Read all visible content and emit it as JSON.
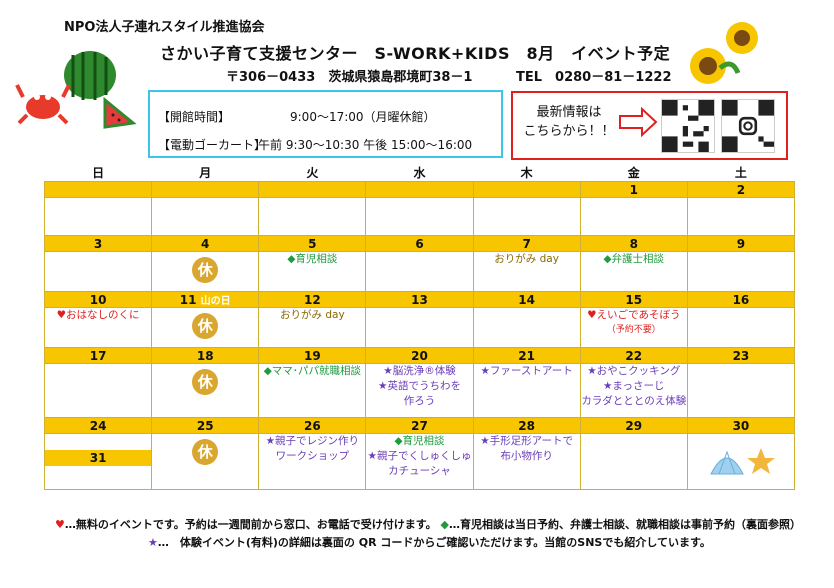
{
  "header": {
    "org": "NPO法人子連れスタイル推進協会",
    "title": "さかい子育て支援センター　S-WORK+KIDS　8月　イベント予定",
    "address": "〒306－0433　茨城県猿島郡境町38－1",
    "tel": "TEL　0280－81－1222"
  },
  "hours": {
    "open_label": "【開館時間】",
    "open_value": "9:00～17:00（月曜休館）",
    "cart_label": "【電動ゴーカート】",
    "cart_value": "午前 9:30～10:30  午後 15:00～16:00"
  },
  "qr": {
    "text1": "最新情報は",
    "text2": "こちらから！！"
  },
  "calendar": {
    "days": [
      "日",
      "月",
      "火",
      "水",
      "木",
      "金",
      "土"
    ],
    "holiday_label": "休",
    "mountain_day": "山の日",
    "weeks": [
      {
        "nums": [
          "",
          "",
          "",
          "",
          "",
          "1",
          "2"
        ],
        "events": [
          "",
          "",
          "",
          "",
          "",
          "",
          ""
        ]
      },
      {
        "nums": [
          "3",
          "4",
          "5",
          "6",
          "7",
          "8",
          "9"
        ]
      },
      {
        "nums": [
          "10",
          "11",
          "12",
          "13",
          "14",
          "15",
          "16"
        ]
      },
      {
        "nums": [
          "17",
          "18",
          "19",
          "20",
          "21",
          "22",
          "23"
        ]
      },
      {
        "nums": [
          "24",
          "25",
          "26",
          "27",
          "28",
          "29",
          "30"
        ]
      }
    ],
    "extra_day": "31",
    "ev": {
      "w2_tue": "◆育児相談",
      "w2_thu": "おりがみ day",
      "w2_fri": "◆弁護士相談",
      "w3_sun": "♥おはなしのくに",
      "w3_tue": "おりがみ day",
      "w3_fri1": "♥えいごであそぼう",
      "w3_fri2": "（予約不要）",
      "w4_tue": "◆ママ･パパ就職相談",
      "w4_wed1": "★脳洗浄®体験",
      "w4_wed2": "★英語でうちわを",
      "w4_wed3": "作ろう",
      "w4_thu": "★ファーストアート",
      "w4_fri1": "★おやこクッキング",
      "w4_fri2": "★まっさーじ",
      "w4_fri3": "カラダとととのえ体験",
      "w5_tue1": "★親子でレジン作り",
      "w5_tue2": "ワークショップ",
      "w5_wed1": "◆育児相談",
      "w5_wed2": "★親子でくしゅくしゅ",
      "w5_wed3": "カチューシャ",
      "w5_thu1": "★手形足形アートで",
      "w5_thu2": "布小物作り"
    }
  },
  "footer": {
    "line1a": "…無料のイベントです。予約は一週間前から窓口、お電話で受け付けます。",
    "line1b": "…育児相談は当日予約、弁護士相談、就職相談は事前予約（裏面参照）",
    "line2": "…　体験イベント(有料)の詳細は裏面の QR コードからご確認いただけます。当館のSNSでも紹介しています。"
  },
  "colors": {
    "yellow": "#f7c600",
    "green": "#1f9a3c",
    "purple": "#6a3db8",
    "red": "#e0201f"
  }
}
